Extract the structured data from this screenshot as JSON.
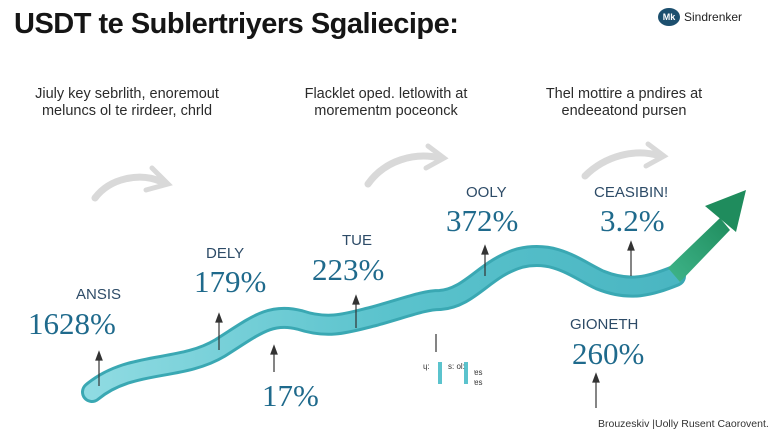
{
  "title": "USDT te Sublertriyers Sgaliecipe:",
  "brand": {
    "logo_text": "Mk",
    "name": "Sindrenker"
  },
  "captions": [
    {
      "line1": "Jiuly key sebrlith, enoremout",
      "line2": "meluncs ol te rirdeer, chrld"
    },
    {
      "line1": "Flacklet oped. letlowith at",
      "line2": "morementm poceonck"
    },
    {
      "line1": "Thel mottire a pndires at",
      "line2": "endeeatond pursen"
    }
  ],
  "metrics": [
    {
      "label": "ANSIS",
      "value": "1628%"
    },
    {
      "label": "DELY",
      "value": "179%"
    },
    {
      "label": "",
      "value": "17%"
    },
    {
      "label": "TUE",
      "value": "223%"
    },
    {
      "label": "OOLY",
      "value": "372%"
    },
    {
      "label": "CEASIBIN!",
      "value": "3.2%"
    },
    {
      "label": "GIONETH",
      "value": "260%"
    }
  ],
  "mini_legend": {
    "a": "ɥ:",
    "b": "s: ol:",
    "c": "ɐs",
    "d": "ɐs"
  },
  "colors": {
    "ribbon": "#5bc3cd",
    "ribbon_edge": "#3aa8b3",
    "arrow": "#2a9d6b",
    "value_text": "#1f6a8c"
  },
  "footer": "Brouzeskiv |Uolly Rusent Caorovent."
}
